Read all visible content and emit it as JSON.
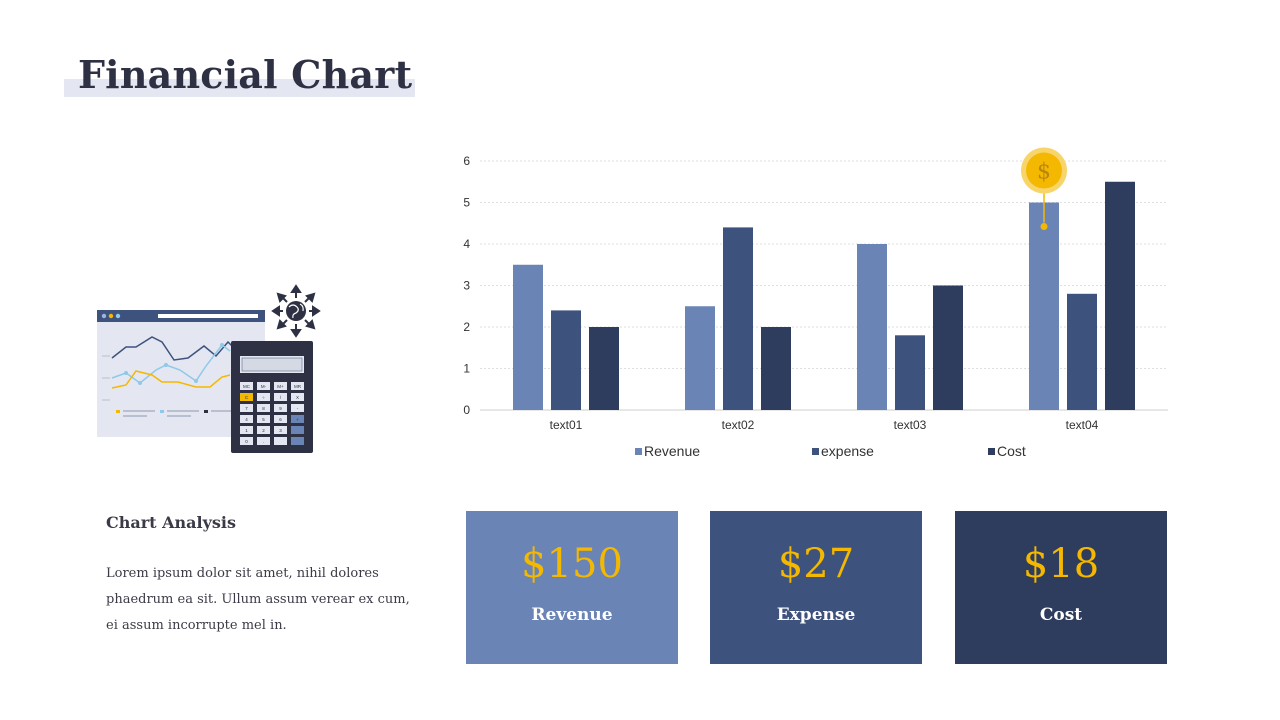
{
  "slide": {
    "title": "Financial Chart",
    "analysis_title": "Chart Analysis",
    "analysis_text": "Lorem ipsum dolor sit amet, nihil dolores phaedrum ea sit. Ullum assum verear ex cum, ei assum  incorrupte mel in."
  },
  "colors": {
    "revenue": "#6a84b5",
    "expense": "#3e527e",
    "cost": "#2e3c5e",
    "accent": "#f5b800",
    "title_band": "#e4e7f1"
  },
  "chart_data": {
    "type": "bar",
    "categories": [
      "text01",
      "text02",
      "text03",
      "text04"
    ],
    "series": [
      {
        "name": "Revenue",
        "values": [
          3.5,
          2.5,
          4,
          5
        ]
      },
      {
        "name": "expense",
        "values": [
          2.4,
          4.4,
          1.8,
          2.8
        ]
      },
      {
        "name": "Cost",
        "values": [
          2,
          2,
          3,
          5.5
        ]
      }
    ],
    "yticks": [
      0,
      1,
      2,
      3,
      4,
      5,
      6
    ],
    "ylim": [
      0,
      6
    ],
    "grid": true,
    "legend": "bottom",
    "annotation_icon": "dollar-coin-icon",
    "annotation_text": "$"
  },
  "cards": [
    {
      "amount": "$150",
      "label": "Revenue"
    },
    {
      "amount": "$27",
      "label": "Expense"
    },
    {
      "amount": "$18",
      "label": "Cost"
    }
  ],
  "illustration": {
    "icons": [
      "browser-window-icon",
      "line-chart-icon",
      "calculator-icon",
      "globe-arrows-icon"
    ],
    "calculator_keys": [
      "MC",
      "M-",
      "M+",
      "MR",
      "C",
      "÷",
      "/",
      "X",
      "7",
      "8",
      "9",
      "-",
      "4",
      "5",
      "6",
      "+",
      "1",
      "2",
      "3",
      "",
      "0",
      ".",
      "",
      ""
    ]
  }
}
